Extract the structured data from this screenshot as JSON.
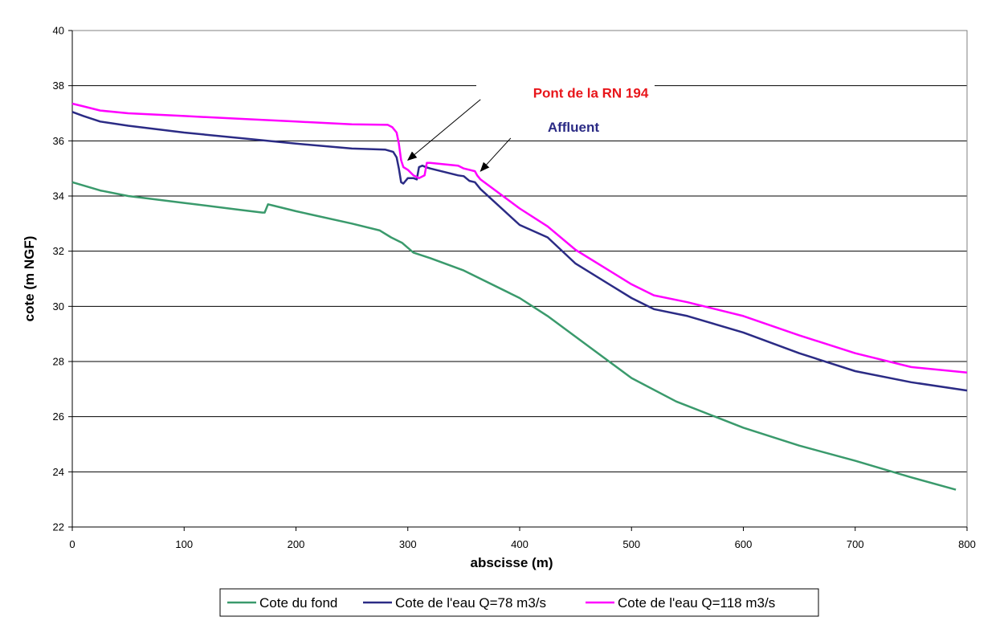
{
  "chart_data": {
    "type": "line",
    "title": "",
    "xlabel": "abscisse (m)",
    "ylabel": "cote (m NGF)",
    "xlim": [
      0,
      800
    ],
    "ylim": [
      22,
      40
    ],
    "xticks": [
      0,
      100,
      200,
      300,
      400,
      500,
      600,
      700,
      800
    ],
    "yticks": [
      22,
      24,
      26,
      28,
      30,
      32,
      34,
      36,
      38,
      40
    ],
    "grid": "horizontal",
    "legend_position": "bottom",
    "series": [
      {
        "name": "Cote du fond",
        "color": "#3a9a6c",
        "points": [
          [
            0,
            34.5
          ],
          [
            25,
            34.2
          ],
          [
            50,
            34.0
          ],
          [
            100,
            33.75
          ],
          [
            150,
            33.5
          ],
          [
            170,
            33.4
          ],
          [
            172,
            33.4
          ],
          [
            175,
            33.7
          ],
          [
            180,
            33.65
          ],
          [
            200,
            33.45
          ],
          [
            250,
            33.0
          ],
          [
            275,
            32.75
          ],
          [
            285,
            32.5
          ],
          [
            295,
            32.3
          ],
          [
            305,
            31.95
          ],
          [
            320,
            31.75
          ],
          [
            340,
            31.45
          ],
          [
            350,
            31.3
          ],
          [
            400,
            30.3
          ],
          [
            425,
            29.65
          ],
          [
            450,
            28.9
          ],
          [
            500,
            27.4
          ],
          [
            540,
            26.55
          ],
          [
            600,
            25.6
          ],
          [
            650,
            24.95
          ],
          [
            700,
            24.4
          ],
          [
            750,
            23.8
          ],
          [
            790,
            23.35
          ]
        ]
      },
      {
        "name": "Cote de l'eau Q=78 m3/s",
        "color": "#2b2b85",
        "points": [
          [
            0,
            37.05
          ],
          [
            10,
            36.9
          ],
          [
            25,
            36.7
          ],
          [
            50,
            36.55
          ],
          [
            100,
            36.3
          ],
          [
            150,
            36.1
          ],
          [
            200,
            35.9
          ],
          [
            250,
            35.72
          ],
          [
            280,
            35.68
          ],
          [
            287,
            35.6
          ],
          [
            290,
            35.4
          ],
          [
            292,
            35.0
          ],
          [
            294,
            34.5
          ],
          [
            296,
            34.45
          ],
          [
            300,
            34.65
          ],
          [
            305,
            34.65
          ],
          [
            308,
            34.6
          ],
          [
            310,
            35.05
          ],
          [
            313,
            35.1
          ],
          [
            316,
            35.05
          ],
          [
            320,
            35.0
          ],
          [
            345,
            34.75
          ],
          [
            350,
            34.72
          ],
          [
            355,
            34.55
          ],
          [
            360,
            34.5
          ],
          [
            365,
            34.25
          ],
          [
            400,
            32.95
          ],
          [
            425,
            32.5
          ],
          [
            450,
            31.55
          ],
          [
            500,
            30.3
          ],
          [
            520,
            29.9
          ],
          [
            550,
            29.65
          ],
          [
            600,
            29.05
          ],
          [
            650,
            28.3
          ],
          [
            700,
            27.65
          ],
          [
            750,
            27.25
          ],
          [
            800,
            26.95
          ]
        ]
      },
      {
        "name": "Cote de l'eau Q=118 m3/s",
        "color": "#ff00ff",
        "points": [
          [
            0,
            37.35
          ],
          [
            10,
            37.25
          ],
          [
            25,
            37.1
          ],
          [
            50,
            37.0
          ],
          [
            100,
            36.9
          ],
          [
            150,
            36.8
          ],
          [
            200,
            36.7
          ],
          [
            250,
            36.6
          ],
          [
            282,
            36.58
          ],
          [
            286,
            36.5
          ],
          [
            290,
            36.3
          ],
          [
            292,
            35.9
          ],
          [
            294,
            35.3
          ],
          [
            296,
            35.05
          ],
          [
            300,
            34.95
          ],
          [
            305,
            34.75
          ],
          [
            310,
            34.65
          ],
          [
            315,
            34.75
          ],
          [
            317,
            35.2
          ],
          [
            320,
            35.2
          ],
          [
            345,
            35.1
          ],
          [
            350,
            35.0
          ],
          [
            360,
            34.9
          ],
          [
            362,
            34.75
          ],
          [
            365,
            34.6
          ],
          [
            400,
            33.55
          ],
          [
            425,
            32.9
          ],
          [
            450,
            32.05
          ],
          [
            500,
            30.8
          ],
          [
            520,
            30.4
          ],
          [
            550,
            30.15
          ],
          [
            600,
            29.65
          ],
          [
            650,
            28.95
          ],
          [
            700,
            28.3
          ],
          [
            750,
            27.8
          ],
          [
            800,
            27.6
          ]
        ]
      }
    ],
    "annotations": [
      {
        "text": "Pont de la RN 194",
        "color": "#e8161b",
        "x": 412,
        "y": 37.75,
        "arrow_from": [
          365,
          37.5
        ],
        "arrow_to": [
          300,
          35.3
        ]
      },
      {
        "text": "Affluent",
        "color": "#2b2b85",
        "x": 425,
        "y": 36.5,
        "arrow_from": [
          392,
          36.1
        ],
        "arrow_to": [
          365,
          34.9
        ]
      }
    ]
  }
}
